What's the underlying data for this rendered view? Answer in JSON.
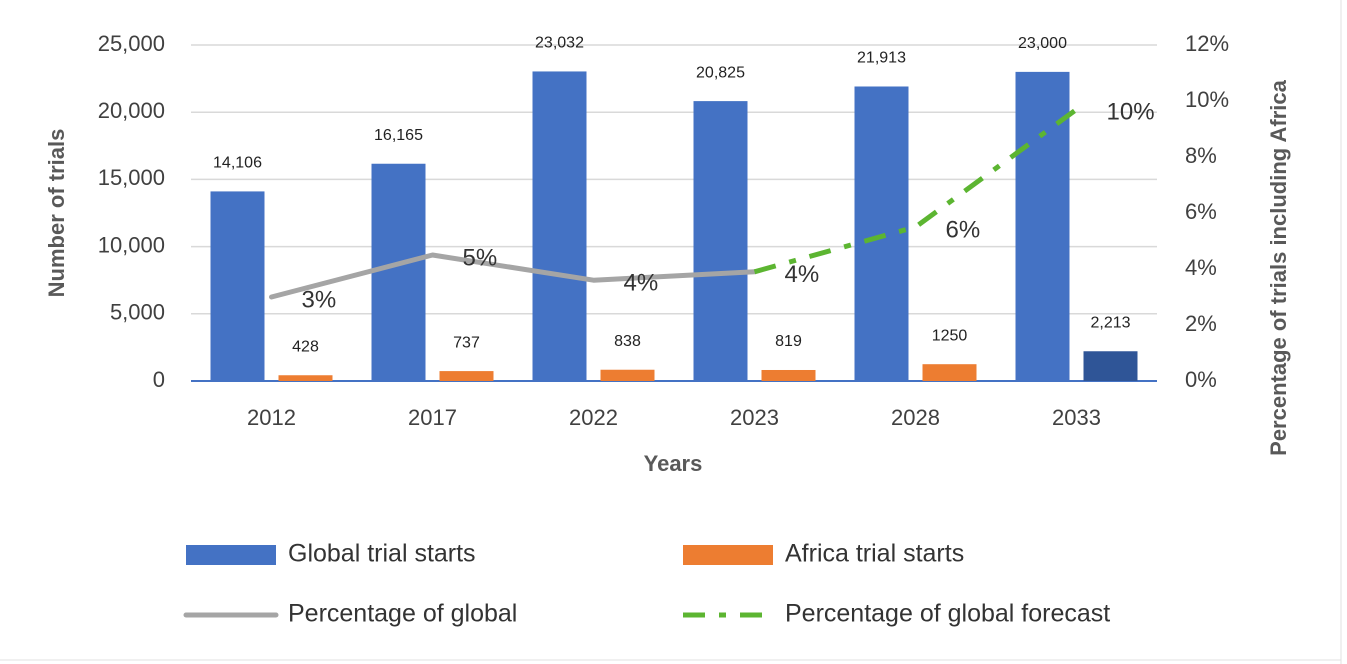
{
  "chart_data": {
    "type": "bar_line",
    "categories": [
      "2012",
      "2017",
      "2022",
      "2023",
      "2028",
      "2033"
    ],
    "x_label": "Years",
    "y_label": "Number of trials",
    "y2_label": "Percentage of trials including Africa",
    "ylim": [
      0,
      25000
    ],
    "yticks": [
      0,
      {
        "value": 5000,
        "label": "5,000"
      },
      {
        "value": 10000,
        "label": "10,000"
      },
      {
        "value": 15000,
        "label": "15,000"
      },
      {
        "value": 20000,
        "label": "20,000"
      },
      {
        "value": 25000,
        "label": "25,000"
      }
    ],
    "y2lim": [
      0,
      12
    ],
    "y2ticks": [
      {
        "value": 0,
        "label": "0%"
      },
      {
        "value": 2,
        "label": "2%"
      },
      {
        "value": 4,
        "label": "4%"
      },
      {
        "value": 6,
        "label": "6%"
      },
      {
        "value": 8,
        "label": "8%"
      },
      {
        "value": 10,
        "label": "10%"
      },
      {
        "value": 12,
        "label": "12%"
      }
    ],
    "grid": true,
    "series": [
      {
        "name": "Global trial starts",
        "kind": "bar",
        "color": "#4472c4",
        "values": [
          14106,
          16165,
          23032,
          20825,
          21913,
          23000
        ],
        "value_labels": [
          "14,106",
          "16,165",
          "23,032",
          "20,825",
          "21,913",
          "23,000"
        ]
      },
      {
        "name": "Africa trial starts",
        "kind": "bar",
        "color": "#ed7d31",
        "colors": [
          "#ed7d31",
          "#ed7d31",
          "#ed7d31",
          "#ed7d31",
          "#ed7d31",
          "#2f5597"
        ],
        "values": [
          428,
          737,
          838,
          819,
          1250,
          2213
        ],
        "value_labels": [
          "428",
          "737",
          "838",
          "819",
          "1250",
          "2,213"
        ]
      },
      {
        "name": "Percentage of global",
        "kind": "line",
        "axis": "y2",
        "color": "#a5a5a5",
        "values": [
          3.0,
          4.5,
          3.6,
          3.9,
          null,
          null
        ],
        "value_labels": [
          "3%",
          "5%",
          "4%",
          "4%",
          null,
          null
        ]
      },
      {
        "name": "Percentage of global forecast",
        "kind": "dashed-line",
        "axis": "y2",
        "color": "#5cb531",
        "values": [
          null,
          null,
          null,
          3.9,
          5.5,
          9.7
        ],
        "value_labels": [
          null,
          null,
          null,
          null,
          "6%",
          "10%"
        ]
      }
    ]
  }
}
